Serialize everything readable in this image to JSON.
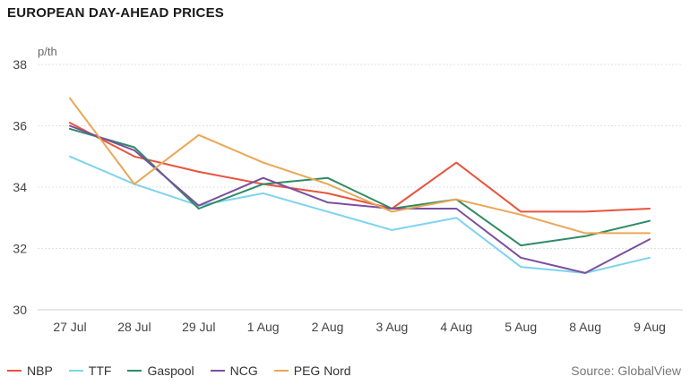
{
  "chart_data": {
    "type": "line",
    "title": "EUROPEAN DAY-AHEAD PRICES",
    "ylabel": "p/th",
    "xlabel": "",
    "categories": [
      "27 Jul",
      "28 Jul",
      "29 Jul",
      "1 Aug",
      "2 Aug",
      "3 Aug",
      "4 Aug",
      "5 Aug",
      "8 Aug",
      "9 Aug"
    ],
    "ylim": [
      30,
      38
    ],
    "yticks": [
      30,
      32,
      34,
      36,
      38
    ],
    "grid": true,
    "legend_position": "bottom-left",
    "source": "Source: GlobalView",
    "series": [
      {
        "name": "NBP",
        "color": "#e8543c",
        "values": [
          36.1,
          35.0,
          34.5,
          34.1,
          33.8,
          33.3,
          34.8,
          33.2,
          33.2,
          33.3
        ]
      },
      {
        "name": "TTF",
        "color": "#7dd3ee",
        "values": [
          35.0,
          34.1,
          33.4,
          33.8,
          33.2,
          32.6,
          33.0,
          31.4,
          31.2,
          31.7
        ]
      },
      {
        "name": "Gaspool",
        "color": "#2e8b63",
        "values": [
          35.9,
          35.3,
          33.3,
          34.1,
          34.3,
          33.3,
          33.6,
          32.1,
          32.4,
          32.9
        ]
      },
      {
        "name": "NCG",
        "color": "#7b4f9e",
        "values": [
          36.0,
          35.2,
          33.4,
          34.3,
          33.5,
          33.3,
          33.3,
          31.7,
          31.2,
          32.3
        ]
      },
      {
        "name": "PEG Nord",
        "color": "#eba656",
        "values": [
          36.9,
          34.1,
          35.7,
          34.8,
          34.1,
          33.2,
          33.6,
          33.1,
          32.5,
          32.5
        ]
      }
    ]
  }
}
